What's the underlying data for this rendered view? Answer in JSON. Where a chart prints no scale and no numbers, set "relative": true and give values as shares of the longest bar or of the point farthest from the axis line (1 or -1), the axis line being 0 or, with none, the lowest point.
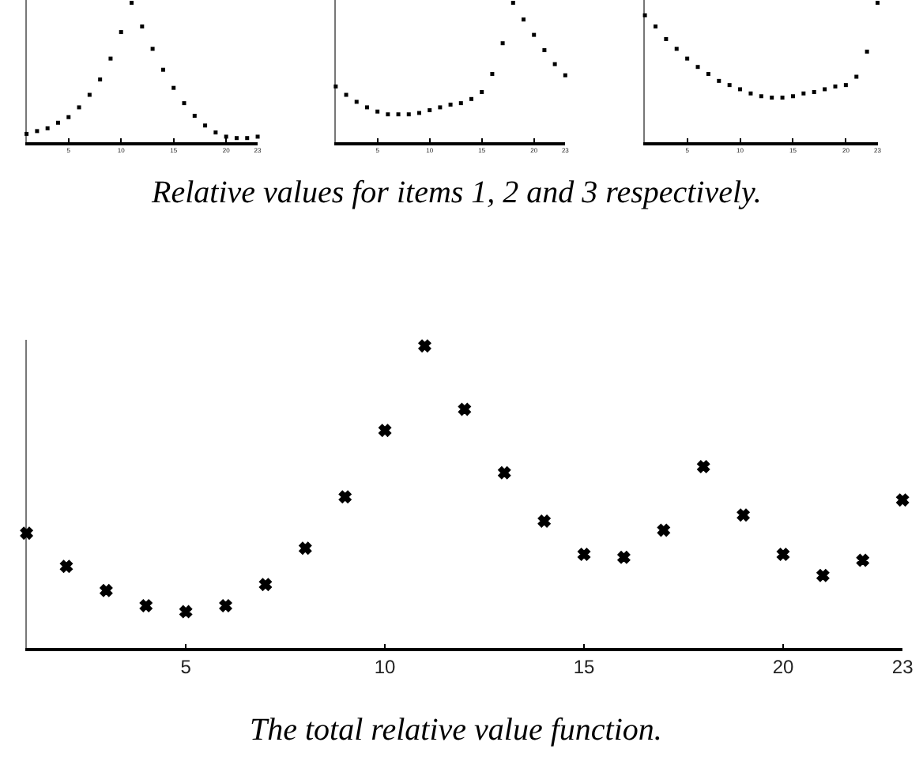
{
  "chart_data": [
    {
      "type": "scatter",
      "relative": true,
      "marker": "square",
      "tick_labels": "x",
      "xlim": [
        1,
        23
      ],
      "xticks": [
        5,
        10,
        15,
        20,
        23
      ],
      "x": [
        1,
        2,
        3,
        4,
        5,
        6,
        7,
        8,
        9,
        10,
        11,
        12,
        13,
        14,
        15,
        16,
        17,
        18,
        19,
        20,
        21,
        22,
        23
      ],
      "color": "#000000",
      "values": [
        0.06,
        0.08,
        0.1,
        0.14,
        0.18,
        0.25,
        0.34,
        0.45,
        0.6,
        0.79,
        1,
        0.83,
        0.67,
        0.52,
        0.39,
        0.28,
        0.19,
        0.12,
        0.07,
        0.04,
        0.03,
        0.03,
        0.04
      ],
      "annotations": [
        "Relative values for items 1, 2 and 3 respectively."
      ]
    },
    {
      "type": "scatter",
      "relative": true,
      "marker": "square",
      "tick_labels": "x",
      "xlim": [
        1,
        23
      ],
      "xticks": [
        5,
        10,
        15,
        20,
        23
      ],
      "x": [
        1,
        2,
        3,
        4,
        5,
        6,
        7,
        8,
        9,
        10,
        11,
        12,
        13,
        14,
        15,
        16,
        17,
        18,
        19,
        20,
        21,
        22,
        23
      ],
      "color": "#000000",
      "values": [
        0.4,
        0.34,
        0.29,
        0.25,
        0.22,
        0.2,
        0.2,
        0.2,
        0.21,
        0.23,
        0.25,
        0.27,
        0.28,
        0.31,
        0.36,
        0.49,
        0.71,
        1,
        0.88,
        0.77,
        0.66,
        0.56,
        0.48
      ]
    },
    {
      "type": "scatter",
      "relative": true,
      "marker": "square",
      "tick_labels": "x",
      "xlim": [
        1,
        23
      ],
      "xticks": [
        5,
        10,
        15,
        20,
        23
      ],
      "x": [
        1,
        2,
        3,
        4,
        5,
        6,
        7,
        8,
        9,
        10,
        11,
        12,
        13,
        14,
        15,
        16,
        17,
        18,
        19,
        20,
        21,
        22,
        23
      ],
      "color": "#000000",
      "values": [
        0.91,
        0.83,
        0.74,
        0.67,
        0.6,
        0.54,
        0.49,
        0.44,
        0.41,
        0.38,
        0.35,
        0.33,
        0.32,
        0.32,
        0.33,
        0.35,
        0.36,
        0.38,
        0.4,
        0.41,
        0.47,
        0.65,
        1
      ]
    },
    {
      "type": "scatter",
      "relative": true,
      "marker": "cross",
      "tick_labels": "x",
      "xlim": [
        1,
        23
      ],
      "xticks": [
        5,
        10,
        15,
        20,
        23
      ],
      "x": [
        1,
        2,
        3,
        4,
        5,
        6,
        7,
        8,
        9,
        10,
        11,
        12,
        13,
        14,
        15,
        16,
        17,
        18,
        19,
        20,
        21,
        22,
        23
      ],
      "color": "#000000",
      "values": [
        0.38,
        0.27,
        0.19,
        0.14,
        0.12,
        0.14,
        0.21,
        0.33,
        0.5,
        0.72,
        1,
        0.79,
        0.58,
        0.42,
        0.31,
        0.3,
        0.39,
        0.6,
        0.44,
        0.31,
        0.24,
        0.29,
        0.49
      ],
      "annotations": [
        "The total relative value function."
      ]
    }
  ]
}
